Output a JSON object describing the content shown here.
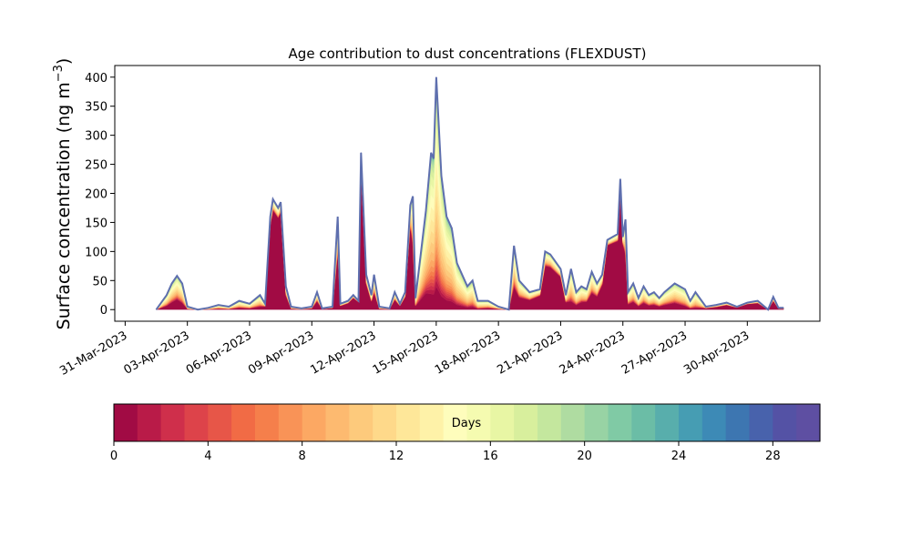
{
  "chart_data": {
    "type": "area",
    "title": "Age contribution to dust concentrations (FLEXDUST)",
    "ylabel_main": "Surface concentration (ng m",
    "ylabel_sup": "−3",
    "ylabel_close": ")",
    "xlabel": "",
    "x_range": [
      "2023-03-30T12:00",
      "2023-05-03T12:00"
    ],
    "ylim": [
      -20,
      420
    ],
    "y_ticks": [
      0,
      50,
      100,
      150,
      200,
      250,
      300,
      350,
      400
    ],
    "x_ticks": [
      {
        "date": "2023-03-31",
        "label": "31-Mar-2023"
      },
      {
        "date": "2023-04-03",
        "label": "03-Apr-2023"
      },
      {
        "date": "2023-04-06",
        "label": "06-Apr-2023"
      },
      {
        "date": "2023-04-09",
        "label": "09-Apr-2023"
      },
      {
        "date": "2023-04-12",
        "label": "12-Apr-2023"
      },
      {
        "date": "2023-04-15",
        "label": "15-Apr-2023"
      },
      {
        "date": "2023-04-18",
        "label": "18-Apr-2023"
      },
      {
        "date": "2023-04-21",
        "label": "21-Apr-2023"
      },
      {
        "date": "2023-04-24",
        "label": "24-Apr-2023"
      },
      {
        "date": "2023-04-27",
        "label": "27-Apr-2023"
      },
      {
        "date": "2023-04-30",
        "label": "30-Apr-2023"
      }
    ],
    "grid": false,
    "series_note": "Stacked areas by dust age in days (0–30), colored with the colorbar; outer line is total concentration.",
    "total_outline_color": "#5e6fae",
    "total": [
      [
        "2023-04-01T12:00",
        0
      ],
      [
        "2023-04-02T00:00",
        25
      ],
      [
        "2023-04-02T06:00",
        45
      ],
      [
        "2023-04-02T12:00",
        58
      ],
      [
        "2023-04-02T18:00",
        45
      ],
      [
        "2023-04-03T00:00",
        5
      ],
      [
        "2023-04-03T12:00",
        0
      ],
      [
        "2023-04-04T00:00",
        3
      ],
      [
        "2023-04-04T12:00",
        8
      ],
      [
        "2023-04-05T00:00",
        5
      ],
      [
        "2023-04-05T12:00",
        15
      ],
      [
        "2023-04-06T00:00",
        10
      ],
      [
        "2023-04-06T12:00",
        25
      ],
      [
        "2023-04-06T18:00",
        10
      ],
      [
        "2023-04-07T00:00",
        160
      ],
      [
        "2023-04-07T03:00",
        190
      ],
      [
        "2023-04-07T09:00",
        175
      ],
      [
        "2023-04-07T12:00",
        185
      ],
      [
        "2023-04-07T18:00",
        40
      ],
      [
        "2023-04-08T00:00",
        5
      ],
      [
        "2023-04-08T12:00",
        2
      ],
      [
        "2023-04-09T00:00",
        5
      ],
      [
        "2023-04-09T06:00",
        30
      ],
      [
        "2023-04-09T12:00",
        2
      ],
      [
        "2023-04-10T00:00",
        5
      ],
      [
        "2023-04-10T06:00",
        160
      ],
      [
        "2023-04-10T09:00",
        10
      ],
      [
        "2023-04-10T18:00",
        15
      ],
      [
        "2023-04-11T00:00",
        25
      ],
      [
        "2023-04-11T06:00",
        15
      ],
      [
        "2023-04-11T09:00",
        270
      ],
      [
        "2023-04-11T15:00",
        60
      ],
      [
        "2023-04-11T21:00",
        25
      ],
      [
        "2023-04-12T00:00",
        60
      ],
      [
        "2023-04-12T06:00",
        5
      ],
      [
        "2023-04-12T18:00",
        2
      ],
      [
        "2023-04-13T00:00",
        30
      ],
      [
        "2023-04-13T06:00",
        10
      ],
      [
        "2023-04-13T12:00",
        30
      ],
      [
        "2023-04-13T18:00",
        180
      ],
      [
        "2023-04-13T21:00",
        195
      ],
      [
        "2023-04-14T00:00",
        20
      ],
      [
        "2023-04-14T12:00",
        170
      ],
      [
        "2023-04-14T18:00",
        270
      ],
      [
        "2023-04-14T21:00",
        260
      ],
      [
        "2023-04-15T00:00",
        400
      ],
      [
        "2023-04-15T06:00",
        230
      ],
      [
        "2023-04-15T12:00",
        160
      ],
      [
        "2023-04-15T18:00",
        140
      ],
      [
        "2023-04-16T00:00",
        80
      ],
      [
        "2023-04-16T12:00",
        40
      ],
      [
        "2023-04-16T18:00",
        50
      ],
      [
        "2023-04-17T00:00",
        15
      ],
      [
        "2023-04-17T12:00",
        15
      ],
      [
        "2023-04-18T00:00",
        5
      ],
      [
        "2023-04-18T12:00",
        0
      ],
      [
        "2023-04-18T18:00",
        110
      ],
      [
        "2023-04-19T00:00",
        50
      ],
      [
        "2023-04-19T12:00",
        30
      ],
      [
        "2023-04-20T00:00",
        35
      ],
      [
        "2023-04-20T06:00",
        100
      ],
      [
        "2023-04-20T12:00",
        95
      ],
      [
        "2023-04-21T00:00",
        70
      ],
      [
        "2023-04-21T06:00",
        25
      ],
      [
        "2023-04-21T12:00",
        70
      ],
      [
        "2023-04-21T18:00",
        30
      ],
      [
        "2023-04-22T00:00",
        40
      ],
      [
        "2023-04-22T06:00",
        35
      ],
      [
        "2023-04-22T12:00",
        65
      ],
      [
        "2023-04-22T18:00",
        45
      ],
      [
        "2023-04-23T00:00",
        60
      ],
      [
        "2023-04-23T06:00",
        120
      ],
      [
        "2023-04-23T12:00",
        125
      ],
      [
        "2023-04-23T18:00",
        130
      ],
      [
        "2023-04-23T21:00",
        225
      ],
      [
        "2023-04-24T00:00",
        125
      ],
      [
        "2023-04-24T03:00",
        155
      ],
      [
        "2023-04-24T06:00",
        30
      ],
      [
        "2023-04-24T12:00",
        45
      ],
      [
        "2023-04-24T18:00",
        20
      ],
      [
        "2023-04-25T00:00",
        40
      ],
      [
        "2023-04-25T06:00",
        25
      ],
      [
        "2023-04-25T12:00",
        30
      ],
      [
        "2023-04-25T18:00",
        20
      ],
      [
        "2023-04-26T00:00",
        30
      ],
      [
        "2023-04-26T12:00",
        45
      ],
      [
        "2023-04-27T00:00",
        35
      ],
      [
        "2023-04-27T06:00",
        15
      ],
      [
        "2023-04-27T12:00",
        30
      ],
      [
        "2023-04-28T00:00",
        5
      ],
      [
        "2023-04-28T12:00",
        8
      ],
      [
        "2023-04-29T00:00",
        12
      ],
      [
        "2023-04-29T12:00",
        5
      ],
      [
        "2023-04-30T00:00",
        12
      ],
      [
        "2023-04-30T12:00",
        15
      ],
      [
        "2023-05-01T00:00",
        0
      ],
      [
        "2023-05-01T06:00",
        22
      ],
      [
        "2023-05-01T12:00",
        3
      ],
      [
        "2023-05-01T18:00",
        3
      ]
    ],
    "young_fraction": [
      [
        "2023-04-01T12:00",
        0.2
      ],
      [
        "2023-04-02T12:00",
        0.3
      ],
      [
        "2023-04-03T00:00",
        0.2
      ],
      [
        "2023-04-06T12:00",
        0.2
      ],
      [
        "2023-04-07T00:00",
        0.9
      ],
      [
        "2023-04-07T12:00",
        0.9
      ],
      [
        "2023-04-08T00:00",
        0.3
      ],
      [
        "2023-04-10T06:00",
        0.6
      ],
      [
        "2023-04-11T09:00",
        0.9
      ],
      [
        "2023-04-12T06:00",
        0.3
      ],
      [
        "2023-04-13T18:00",
        0.8
      ],
      [
        "2023-04-14T00:00",
        0.3
      ],
      [
        "2023-04-14T18:00",
        0.1
      ],
      [
        "2023-04-15T00:00",
        0.1
      ],
      [
        "2023-04-16T00:00",
        0.1
      ],
      [
        "2023-04-17T00:00",
        0.1
      ],
      [
        "2023-04-18T18:00",
        0.35
      ],
      [
        "2023-04-20T06:00",
        0.75
      ],
      [
        "2023-04-21T00:00",
        0.8
      ],
      [
        "2023-04-21T12:00",
        0.2
      ],
      [
        "2023-04-22T18:00",
        0.5
      ],
      [
        "2023-04-23T06:00",
        0.92
      ],
      [
        "2023-04-24T00:00",
        0.9
      ],
      [
        "2023-04-24T06:00",
        0.3
      ],
      [
        "2023-04-26T12:00",
        0.25
      ],
      [
        "2023-04-27T12:00",
        0.1
      ],
      [
        "2023-04-28T00:00",
        0.5
      ],
      [
        "2023-04-30T00:00",
        0.8
      ],
      [
        "2023-05-01T18:00",
        0.6
      ]
    ],
    "colorbar": {
      "label": "Days",
      "min": 0,
      "max": 30,
      "bins": 30,
      "ticks": [
        0,
        4,
        8,
        12,
        16,
        20,
        24,
        28
      ],
      "colormap": "Spectral",
      "colors": [
        "#a10b44",
        "#b91b48",
        "#cf2f4b",
        "#dd434a",
        "#e75648",
        "#f16b45",
        "#f57f4b",
        "#f99357",
        "#fca863",
        "#fdba70",
        "#fdca7c",
        "#fed98a",
        "#fee799",
        "#fef2a8",
        "#fefdbc",
        "#f5fbb0",
        "#e8f6a4",
        "#d8ef9d",
        "#c4e79e",
        "#afdca1",
        "#98d3a4",
        "#80caa5",
        "#6bbda6",
        "#58aeac",
        "#469db3",
        "#3d8ab6",
        "#3d76b1",
        "#4862ac",
        "#5452a5",
        "#5e4fa2"
      ]
    }
  }
}
